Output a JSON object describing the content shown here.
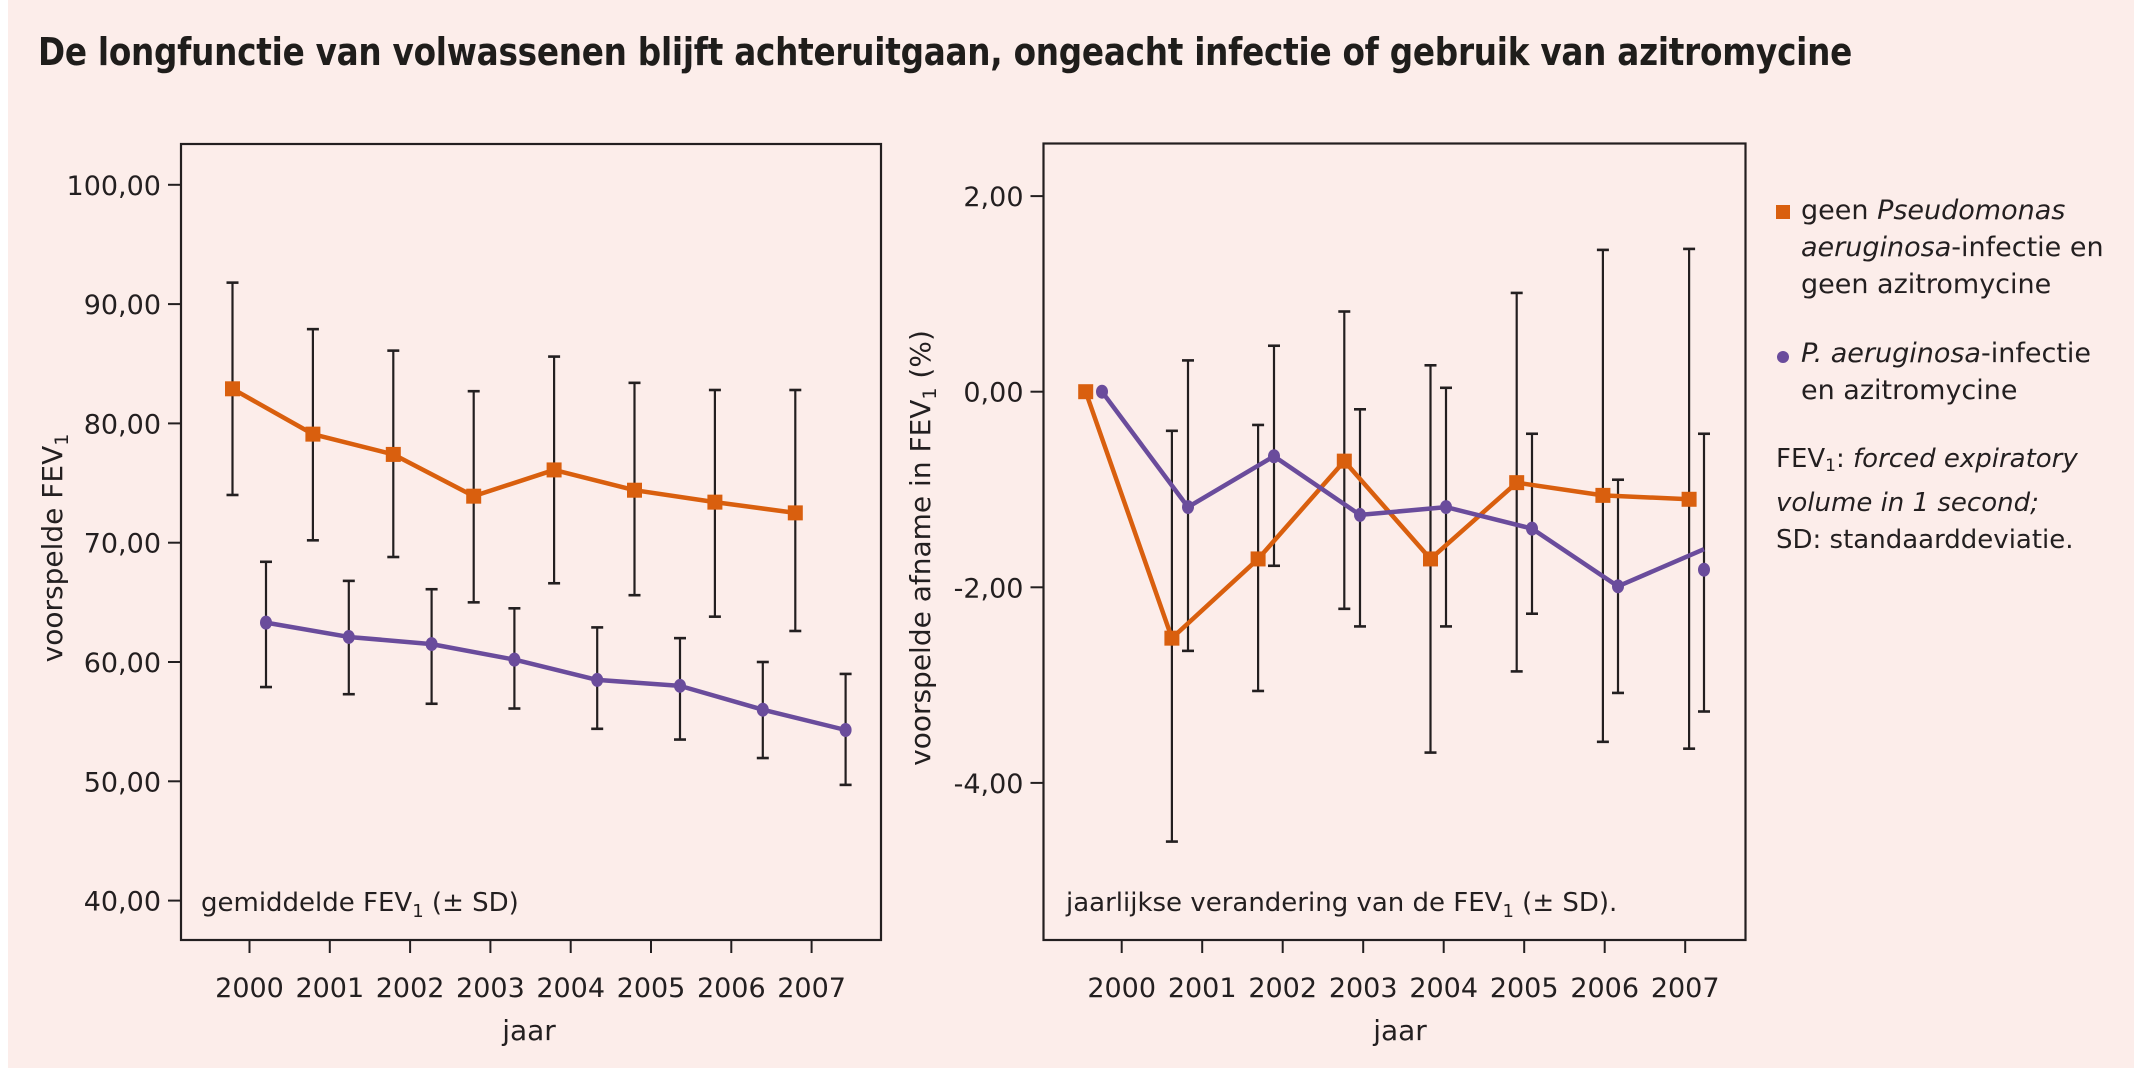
{
  "title": "De longfunctie van volwassenen blijft achteruitgaan, ongeacht infectie of gebruik van azitromycine",
  "colors": {
    "orange": "#d95f0e",
    "purple": "#6a4c9c",
    "axis": "#231f20",
    "background": "#fcedea"
  },
  "legend": {
    "items": [
      {
        "marker": "square",
        "color": "#d95f0e",
        "parts": [
          {
            "text": "geen ",
            "italic": false
          },
          {
            "text": "Pseudomonas aeruginosa",
            "italic": true
          },
          {
            "text": "-infectie en geen azitromycine",
            "italic": false
          }
        ]
      },
      {
        "marker": "dot",
        "color": "#6a4c9c",
        "parts": [
          {
            "text": "P. aeruginosa",
            "italic": true
          },
          {
            "text": "-infectie en azitromycine",
            "italic": false
          }
        ]
      }
    ],
    "footnote": {
      "abbr": "FEV",
      "abbr_sub": "1",
      "colon": ": ",
      "definition_italic": "forced expiratory volume in 1 second;",
      "sd_line": "SD: standaarddeviatie."
    }
  },
  "chart_data": [
    {
      "type": "line",
      "title": "gemiddelde FEV1 (± SD)",
      "inset_label": {
        "main": "gemiddelde FEV",
        "sub": "1",
        "suffix": " (± SD)"
      },
      "xlabel": "jaar",
      "ylabel": {
        "main": "voorspelde FEV",
        "sub": "1",
        "suffix": ""
      },
      "x": [
        "2000",
        "2001",
        "2002",
        "2003",
        "2004",
        "2005",
        "2006",
        "2007"
      ],
      "yticks": [
        40,
        50,
        60,
        70,
        80,
        90,
        100
      ],
      "ytick_labels": [
        "40,00",
        "50,00",
        "60,00",
        "70,00",
        "80,00",
        "90,00",
        "100,00"
      ],
      "ylim": [
        36.6,
        103.4
      ],
      "grid": false,
      "error_bars": "± SD",
      "series": [
        {
          "name": "geen Pseudomonas aeruginosa-infectie en geen azitromycine",
          "marker": "square",
          "color": "#d95f0e",
          "values": [
            82.9,
            79.1,
            77.4,
            73.9,
            76.1,
            74.4,
            73.4,
            72.5
          ],
          "upper": [
            91.8,
            87.9,
            86.1,
            82.7,
            85.6,
            83.4,
            82.8,
            82.8
          ],
          "lower": [
            74.0,
            70.2,
            68.8,
            65.0,
            66.6,
            65.6,
            63.8,
            62.6
          ]
        },
        {
          "name": "P. aeruginosa-infectie en azitromycine",
          "marker": "dot",
          "color": "#6a4c9c",
          "values": [
            63.3,
            62.1,
            61.5,
            60.2,
            58.5,
            58.0,
            56.0,
            54.3
          ],
          "upper": [
            68.4,
            66.8,
            66.1,
            64.5,
            62.9,
            62.0,
            60.0,
            59.0
          ],
          "lower": [
            57.9,
            57.3,
            56.5,
            56.1,
            54.4,
            53.5,
            51.95,
            49.7
          ]
        }
      ]
    },
    {
      "type": "line",
      "title": "jaarlijkse verandering van de FEV1 (± SD).",
      "inset_label": {
        "main": "jaarlijkse verandering van de FEV",
        "sub": "1",
        "suffix": " (± SD)."
      },
      "xlabel": "jaar",
      "ylabel": {
        "main": "voorspelde afname in FEV",
        "sub": "1",
        "suffix": " (%)"
      },
      "x": [
        "2000",
        "2001",
        "2002",
        "2003",
        "2004",
        "2005",
        "2006",
        "2007"
      ],
      "yticks": [
        2,
        0,
        -2,
        -4
      ],
      "ytick_labels": [
        "2,00",
        "0,00",
        "-2,00",
        "-4,00"
      ],
      "ylim": [
        -5.6,
        2.54
      ],
      "grid": false,
      "error_bars": "± SD",
      "series": [
        {
          "name": "geen Pseudomonas aeruginosa-infectie en geen azitromycine",
          "marker": "square",
          "color": "#d95f0e",
          "values": [
            0.0,
            -2.52,
            -1.71,
            -0.71,
            -1.71,
            -0.93,
            -1.06,
            -1.1
          ],
          "upper": [
            null,
            -0.4,
            -0.34,
            0.82,
            0.27,
            1.01,
            1.45,
            1.46
          ],
          "lower": [
            null,
            -4.6,
            -3.06,
            -2.22,
            -3.69,
            -2.86,
            -3.58,
            -3.65
          ]
        },
        {
          "name": "P. aeruginosa-infectie en azitromycine",
          "marker": "dot",
          "color": "#6a4c9c",
          "values": [
            0.0,
            -1.18,
            -0.66,
            -1.26,
            -1.18,
            -1.4,
            -1.99,
            -1.82
          ],
          "line_end_value": -1.61,
          "upper": [
            null,
            0.32,
            0.47,
            -0.18,
            0.04,
            -0.43,
            -0.9,
            -0.43
          ],
          "lower": [
            null,
            -2.65,
            -1.78,
            -2.4,
            -2.4,
            -2.27,
            -3.08,
            -3.27
          ]
        }
      ]
    }
  ]
}
